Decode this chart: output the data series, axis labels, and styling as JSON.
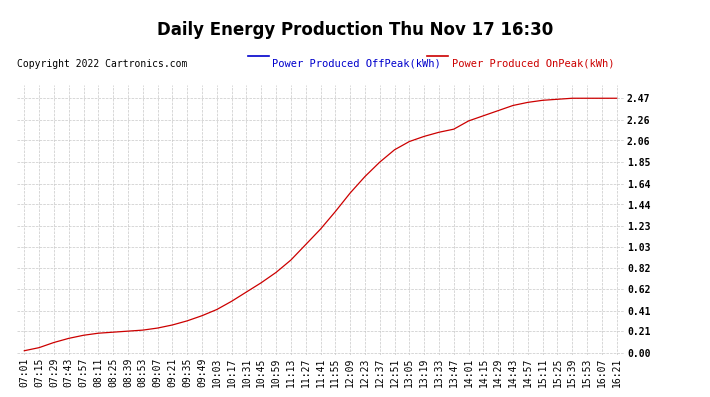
{
  "title": "Daily Energy Production Thu Nov 17 16:30",
  "copyright_text": "Copyright 2022 Cartronics.com",
  "legend_offpeak": "Power Produced OffPeak(kWh)",
  "legend_onpeak": "Power Produced OnPeak(kWh)",
  "legend_offpeak_color": "#0000cc",
  "legend_onpeak_color": "#cc0000",
  "line_color": "#cc0000",
  "background_color": "#ffffff",
  "grid_color": "#c8c8c8",
  "yticks": [
    0.0,
    0.21,
    0.41,
    0.62,
    0.82,
    1.03,
    1.23,
    1.44,
    1.64,
    1.85,
    2.06,
    2.26,
    2.47
  ],
  "x_labels": [
    "07:01",
    "07:15",
    "07:29",
    "07:43",
    "07:57",
    "08:11",
    "08:25",
    "08:39",
    "08:53",
    "09:07",
    "09:21",
    "09:35",
    "09:49",
    "10:03",
    "10:17",
    "10:31",
    "10:45",
    "10:59",
    "11:13",
    "11:27",
    "11:41",
    "11:55",
    "12:09",
    "12:23",
    "12:37",
    "12:51",
    "13:05",
    "13:19",
    "13:33",
    "13:47",
    "14:01",
    "14:15",
    "14:29",
    "14:43",
    "14:57",
    "15:11",
    "15:25",
    "15:39",
    "15:53",
    "16:07",
    "16:21"
  ],
  "y_values": [
    0.02,
    0.05,
    0.1,
    0.14,
    0.17,
    0.19,
    0.2,
    0.21,
    0.22,
    0.24,
    0.27,
    0.31,
    0.36,
    0.42,
    0.5,
    0.59,
    0.68,
    0.78,
    0.9,
    1.05,
    1.2,
    1.37,
    1.55,
    1.71,
    1.85,
    1.97,
    2.05,
    2.1,
    2.14,
    2.17,
    2.25,
    2.3,
    2.35,
    2.4,
    2.43,
    2.45,
    2.46,
    2.47,
    2.47,
    2.47,
    2.47
  ],
  "title_fontsize": 12,
  "tick_fontsize": 7,
  "legend_fontsize": 7.5,
  "copyright_fontsize": 7
}
